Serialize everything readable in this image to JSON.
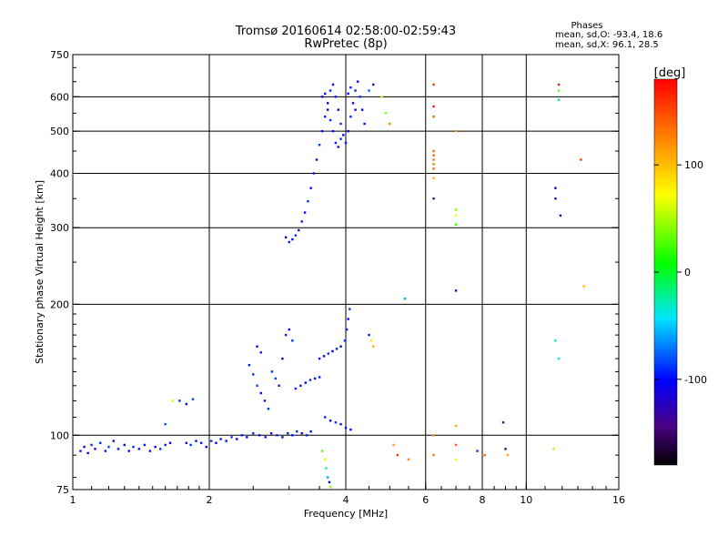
{
  "header": {
    "title": "Tromsø 20160614 02:58:00-02:59:43",
    "subtitle": "RwPretec (8p)"
  },
  "stats": {
    "heading": "Phases",
    "o_line": "mean, sd,O: -93.4, 18.6",
    "x_line": "mean, sd,X:  96.1, 28.5"
  },
  "colorbar": {
    "label": "[deg]",
    "min": -180,
    "max": 180,
    "tick_labels": [
      "100",
      "0",
      "-100"
    ],
    "tick_values": [
      100,
      0,
      -100
    ]
  },
  "chart_data": {
    "type": "scatter",
    "xlabel": "Frequency [MHz]",
    "ylabel": "Stationary phase Virtual Height [km]",
    "x_scale": "log",
    "y_scale": "log",
    "xlim": [
      1,
      16
    ],
    "ylim": [
      75,
      750
    ],
    "x_ticks": [
      1,
      2,
      4,
      6,
      8,
      10,
      16
    ],
    "x_tick_labels": [
      "1",
      "2",
      "4",
      "6",
      "8",
      "10",
      "16"
    ],
    "y_ticks": [
      75,
      100,
      200,
      300,
      400,
      500,
      600,
      750
    ],
    "y_tick_labels": [
      "75",
      "100",
      "200",
      "300",
      "400",
      "500",
      "600",
      "750"
    ],
    "grid": true,
    "series": [
      {
        "color_by": "phase_deg",
        "points": [
          [
            1.04,
            92,
            -95
          ],
          [
            1.06,
            94,
            -100
          ],
          [
            1.08,
            91,
            -105
          ],
          [
            1.1,
            95,
            -90
          ],
          [
            1.12,
            93,
            -110
          ],
          [
            1.15,
            96,
            -95
          ],
          [
            1.18,
            92,
            -100
          ],
          [
            1.2,
            94,
            -85
          ],
          [
            1.23,
            97,
            -105
          ],
          [
            1.26,
            93,
            -95
          ],
          [
            1.3,
            95,
            -100
          ],
          [
            1.33,
            92,
            -110
          ],
          [
            1.36,
            94,
            -90
          ],
          [
            1.4,
            93,
            -100
          ],
          [
            1.44,
            95,
            -95
          ],
          [
            1.48,
            92,
            -105
          ],
          [
            1.52,
            94,
            -100
          ],
          [
            1.56,
            93,
            -90
          ],
          [
            1.6,
            95,
            -95
          ],
          [
            1.64,
            96,
            -110
          ],
          [
            1.6,
            106,
            -80
          ],
          [
            1.78,
            96,
            -100
          ],
          [
            1.82,
            95,
            -90
          ],
          [
            1.87,
            97,
            -105
          ],
          [
            1.92,
            96,
            -95
          ],
          [
            1.97,
            94,
            -100
          ],
          [
            2.02,
            97,
            -90
          ],
          [
            2.07,
            96,
            -110
          ],
          [
            2.12,
            98,
            -95
          ],
          [
            2.18,
            97,
            -100
          ],
          [
            2.24,
            99,
            -90
          ],
          [
            2.3,
            98,
            -105
          ],
          [
            2.36,
            100,
            -95
          ],
          [
            2.42,
            99,
            -100
          ],
          [
            2.5,
            101,
            -90
          ],
          [
            2.58,
            100,
            -110
          ],
          [
            2.66,
            99,
            -95
          ],
          [
            2.74,
            101,
            -100
          ],
          [
            2.82,
            100,
            -90
          ],
          [
            2.9,
            99,
            -105
          ],
          [
            2.98,
            101,
            -95
          ],
          [
            3.05,
            100,
            -100
          ],
          [
            3.12,
            102,
            -90
          ],
          [
            3.2,
            101,
            -110
          ],
          [
            3.28,
            100,
            -95
          ],
          [
            3.35,
            102,
            -100
          ],
          [
            1.72,
            120,
            -90
          ],
          [
            1.78,
            118,
            -100
          ],
          [
            1.84,
            121,
            -85
          ],
          [
            1.66,
            120,
            60
          ],
          [
            2.45,
            145,
            -95
          ],
          [
            2.5,
            138,
            -90
          ],
          [
            2.55,
            130,
            -85
          ],
          [
            2.6,
            125,
            -100
          ],
          [
            2.65,
            120,
            -95
          ],
          [
            2.7,
            115,
            -90
          ],
          [
            2.55,
            160,
            -100
          ],
          [
            2.6,
            155,
            -95
          ],
          [
            2.75,
            140,
            -90
          ],
          [
            2.8,
            135,
            -85
          ],
          [
            2.85,
            130,
            -95
          ],
          [
            2.9,
            150,
            -100
          ],
          [
            2.95,
            170,
            -95
          ],
          [
            3.0,
            175,
            -105
          ],
          [
            3.05,
            165,
            -90
          ],
          [
            3.1,
            128,
            -90
          ],
          [
            3.18,
            130,
            -95
          ],
          [
            3.26,
            132,
            -100
          ],
          [
            3.34,
            134,
            -90
          ],
          [
            3.42,
            135,
            -105
          ],
          [
            3.5,
            136,
            -95
          ],
          [
            3.5,
            150,
            -95
          ],
          [
            3.58,
            152,
            -100
          ],
          [
            3.66,
            154,
            -90
          ],
          [
            3.74,
            156,
            -105
          ],
          [
            3.82,
            158,
            -95
          ],
          [
            3.9,
            160,
            -100
          ],
          [
            3.98,
            165,
            -90
          ],
          [
            4.02,
            175,
            -95
          ],
          [
            4.05,
            185,
            -100
          ],
          [
            4.08,
            195,
            -90
          ],
          [
            3.6,
            110,
            -95
          ],
          [
            3.7,
            108,
            -100
          ],
          [
            3.8,
            107,
            -90
          ],
          [
            3.9,
            106,
            -105
          ],
          [
            4.0,
            104,
            -95
          ],
          [
            4.1,
            103,
            -100
          ],
          [
            3.55,
            92,
            30
          ],
          [
            3.6,
            88,
            70
          ],
          [
            3.62,
            84,
            -20
          ],
          [
            3.65,
            80,
            -60
          ],
          [
            3.68,
            78,
            -100
          ],
          [
            3.7,
            76,
            40
          ],
          [
            4.5,
            170,
            -95
          ],
          [
            4.55,
            165,
            80
          ],
          [
            4.6,
            160,
            110
          ],
          [
            5.1,
            95,
            110
          ],
          [
            5.2,
            90,
            160
          ],
          [
            5.5,
            88,
            120
          ],
          [
            5.4,
            206,
            -60
          ],
          [
            2.95,
            285,
            -100
          ],
          [
            3.0,
            278,
            -95
          ],
          [
            3.05,
            282,
            -105
          ],
          [
            3.1,
            288,
            -90
          ],
          [
            3.15,
            296,
            -100
          ],
          [
            3.2,
            310,
            -95
          ],
          [
            3.25,
            325,
            -105
          ],
          [
            3.3,
            345,
            -90
          ],
          [
            3.35,
            370,
            -100
          ],
          [
            3.4,
            400,
            -95
          ],
          [
            3.45,
            430,
            -105
          ],
          [
            3.5,
            465,
            -90
          ],
          [
            3.55,
            500,
            -100
          ],
          [
            3.6,
            540,
            -95
          ],
          [
            3.65,
            580,
            -105
          ],
          [
            3.7,
            620,
            -90
          ],
          [
            3.75,
            640,
            -100
          ],
          [
            3.8,
            600,
            -95
          ],
          [
            3.85,
            560,
            -105
          ],
          [
            3.9,
            520,
            -90
          ],
          [
            3.95,
            490,
            -100
          ],
          [
            4.0,
            470,
            -95
          ],
          [
            4.05,
            500,
            -105
          ],
          [
            4.1,
            540,
            -90
          ],
          [
            4.15,
            580,
            -100
          ],
          [
            4.2,
            620,
            -95
          ],
          [
            4.25,
            650,
            -105
          ],
          [
            4.3,
            600,
            -90
          ],
          [
            4.35,
            560,
            -100
          ],
          [
            4.4,
            520,
            -95
          ],
          [
            3.55,
            600,
            -100
          ],
          [
            3.6,
            610,
            -95
          ],
          [
            3.65,
            560,
            -110
          ],
          [
            3.7,
            530,
            -90
          ],
          [
            3.75,
            500,
            -100
          ],
          [
            3.8,
            470,
            -95
          ],
          [
            3.85,
            460,
            -105
          ],
          [
            3.9,
            480,
            -90
          ],
          [
            4.05,
            610,
            -100
          ],
          [
            4.1,
            630,
            -95
          ],
          [
            4.2,
            560,
            -105
          ],
          [
            4.5,
            620,
            -80
          ],
          [
            4.8,
            600,
            60
          ],
          [
            4.9,
            550,
            40
          ],
          [
            5.0,
            520,
            120
          ],
          [
            4.6,
            640,
            -100
          ],
          [
            6.25,
            640,
            160
          ],
          [
            6.25,
            570,
            170
          ],
          [
            6.25,
            540,
            140
          ],
          [
            6.25,
            450,
            135
          ],
          [
            6.25,
            440,
            140
          ],
          [
            6.25,
            430,
            130
          ],
          [
            6.25,
            420,
            125
          ],
          [
            6.25,
            410,
            135
          ],
          [
            6.25,
            390,
            110
          ],
          [
            6.25,
            350,
            -140
          ],
          [
            6.25,
            100,
            120
          ],
          [
            6.25,
            90,
            130
          ],
          [
            7.0,
            500,
            120
          ],
          [
            7.0,
            330,
            40
          ],
          [
            7.0,
            320,
            70
          ],
          [
            7.0,
            305,
            20
          ],
          [
            7.0,
            215,
            -130
          ],
          [
            7.0,
            105,
            110
          ],
          [
            7.0,
            95,
            140
          ],
          [
            7.0,
            88,
            70
          ],
          [
            7.8,
            92,
            -90
          ],
          [
            8.1,
            90,
            140
          ],
          [
            8.9,
            107,
            -140
          ],
          [
            9.0,
            93,
            -140
          ],
          [
            9.1,
            90,
            110
          ],
          [
            11.8,
            640,
            170
          ],
          [
            11.8,
            620,
            30
          ],
          [
            11.8,
            590,
            -10
          ],
          [
            11.6,
            370,
            -110
          ],
          [
            11.6,
            350,
            -100
          ],
          [
            11.9,
            320,
            -130
          ],
          [
            11.6,
            165,
            -30
          ],
          [
            11.8,
            150,
            -40
          ],
          [
            11.5,
            93,
            90
          ],
          [
            13.2,
            430,
            160
          ],
          [
            13.4,
            220,
            100
          ]
        ]
      }
    ]
  }
}
